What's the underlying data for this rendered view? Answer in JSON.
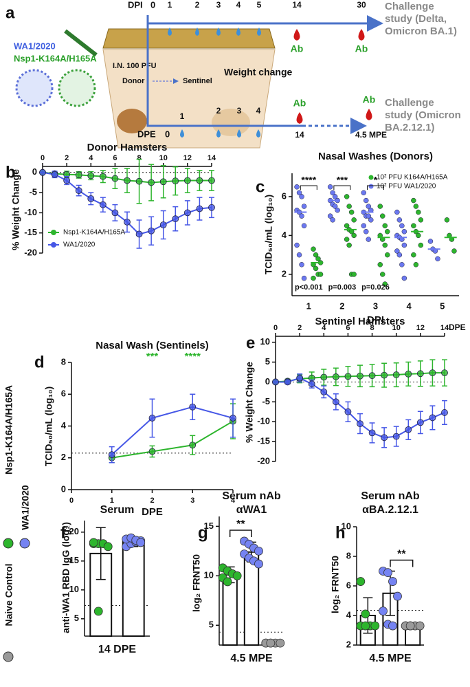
{
  "diagram": {
    "label": "a",
    "dpi_label": "DPI",
    "dpi_ticks": [
      "0",
      "1",
      "2",
      "3",
      "4",
      "5",
      "14",
      "30"
    ],
    "dpe_label": "DPE",
    "dpe_ticks": [
      "0",
      "1",
      "2",
      "3",
      "4",
      "14"
    ],
    "mpe_label": "4.5 MPE",
    "ab_label": "Ab",
    "challenge_top": [
      "Challenge",
      "study (Delta,",
      "Omicron BA.1)"
    ],
    "challenge_bottom": [
      "Challenge",
      "study (Omicron",
      "BA.2.12.1)"
    ],
    "strains": [
      "WA1/2020",
      "Nsp1-K164A/H165A"
    ],
    "dose": "I.N. 100 PFU",
    "donor": "Donor",
    "sentinel": "Sentinel",
    "weight_change": "Weight change"
  },
  "legend": [
    {
      "name": "Nsp1-K164A/H165A",
      "color": "#2db52d"
    },
    {
      "name": "WA1/2020",
      "color": "#7583f2"
    },
    {
      "name": "Naive Control",
      "color": "#9a9a9a"
    }
  ],
  "chart_data": [
    {
      "type": "line",
      "label": "b",
      "title": "Donor Hamsters",
      "y_label": "% Weight Change",
      "x": [
        0,
        1,
        2,
        3,
        4,
        5,
        6,
        7,
        8,
        9,
        10,
        11,
        12,
        13,
        14
      ],
      "xlim": [
        0,
        14
      ],
      "xticks": [
        0,
        2,
        4,
        6,
        8,
        10,
        12,
        14
      ],
      "ylim": [
        -20,
        1.5
      ],
      "yticks": [
        0,
        -5,
        -10,
        -15,
        -20
      ],
      "reference_line": 0,
      "legend": "bottom-left",
      "series": [
        {
          "name": "Nsp1-K164A/H165A",
          "color": "#2db52d",
          "values": [
            0,
            -0.3,
            -0.5,
            -0.6,
            -0.8,
            -1,
            -1.5,
            -2,
            -2.2,
            -2.5,
            -2.3,
            -2.1,
            -2,
            -2,
            -2
          ],
          "errors": [
            0,
            0.5,
            0.8,
            0.8,
            1,
            1.5,
            2.5,
            3,
            5.5,
            4.5,
            4,
            3.5,
            3,
            2.5,
            2.5
          ]
        },
        {
          "name": "WA1/2020",
          "color": "#4657e6",
          "values": [
            0,
            -0.5,
            -2,
            -4.5,
            -6.5,
            -8,
            -10,
            -12.3,
            -15.3,
            -14.5,
            -13,
            -11.5,
            -10,
            -9,
            -8.7
          ],
          "errors": [
            0,
            0.8,
            1,
            1.3,
            1.5,
            1.8,
            2,
            2.5,
            3.5,
            3.5,
            3.5,
            3,
            3,
            2.8,
            2.5
          ]
        }
      ]
    },
    {
      "type": "strip",
      "label": "c",
      "title": "Nasal  Washes (Donors)",
      "y_label": "TCID₅₀/mL (log₁₀)",
      "x_label": "DPI",
      "categories": [
        "1",
        "2",
        "3",
        "4",
        "5"
      ],
      "ylim": [
        0.9,
        7.2
      ],
      "yticks": [
        2,
        4,
        6
      ],
      "legend": "top-right",
      "annotations": [
        "****",
        "***",
        "*"
      ],
      "p_values": [
        "p<0.001",
        "p=0.003",
        "p=0.026"
      ],
      "series": [
        {
          "name": "10² PFU K164A/H165A",
          "color": "#2db52d",
          "points": [
            [
              3.3,
              3,
              2.8,
              2.6,
              2.5,
              2.3,
              2,
              2,
              1.8
            ],
            [
              6,
              5.5,
              5.2,
              4.8,
              4.5,
              4.3,
              4.2,
              4,
              3.8,
              3.5,
              2,
              2
            ],
            [
              5.5,
              5,
              4.5,
              4.2,
              4,
              3.8,
              3.5,
              3,
              2.5,
              2,
              1.5
            ],
            [
              5.8,
              5.5,
              5.2,
              4.8,
              4.5,
              4.2,
              4,
              3.5,
              3,
              2.5
            ],
            [
              4.8,
              4,
              3.8,
              3.2
            ]
          ],
          "means": [
            2.6,
            4.3,
            3.9,
            4.2,
            3.9
          ]
        },
        {
          "name": "10² PFU WA1/2020",
          "color": "#6b78f0",
          "points": [
            [
              6.5,
              6.2,
              6,
              5.5,
              5.3,
              5.2,
              5,
              4.5,
              3.5,
              3,
              2.5,
              1.8
            ],
            [
              6.5,
              6.2,
              6,
              5.8,
              5.8,
              5.6,
              5.5,
              5.3,
              5,
              4.8
            ],
            [
              6.2,
              5.8,
              5.5,
              5.3,
              5.2,
              5,
              5,
              4.8,
              4.5,
              4.2,
              3.8
            ],
            [
              5.2,
              4.8,
              4.5,
              4.2,
              4,
              3.9,
              3.8,
              3.5,
              3.2,
              3,
              2.5,
              1.8
            ],
            [
              3.7,
              3.3,
              3.2,
              2.8
            ]
          ],
          "means": [
            5.2,
            5.8,
            5.2,
            3.9,
            3.3
          ]
        }
      ]
    },
    {
      "type": "line",
      "label": "d",
      "title": "Nasal Wash (Sentinels)",
      "y_label": "TCID₅₀/mL (log₁₀)",
      "x_label": "DPE",
      "x": [
        1,
        2,
        3,
        4
      ],
      "xlim": [
        0,
        4
      ],
      "xticks": [
        0,
        1,
        2,
        3,
        4
      ],
      "ylim": [
        0,
        8
      ],
      "yticks": [
        0,
        2,
        4,
        6,
        8
      ],
      "reference_line": 2.3,
      "annotation_color": "#2db52d",
      "annotations": [
        {
          "x": 2,
          "text": "***"
        },
        {
          "x": 3,
          "text": "****"
        }
      ],
      "series": [
        {
          "color": "#2db52d",
          "values": [
            2.0,
            2.4,
            2.8,
            4.3
          ],
          "errors": [
            0.3,
            0.35,
            0.6,
            1.1
          ]
        },
        {
          "color": "#4657e6",
          "values": [
            2.2,
            4.5,
            5.2,
            4.5
          ],
          "errors": [
            0.5,
            1.2,
            0.8,
            1.2
          ]
        }
      ]
    },
    {
      "type": "line",
      "label": "e",
      "title": "Sentinel Hamsters",
      "y_label": "% Weight Change",
      "x_label": "DPE",
      "x": [
        0,
        1,
        2,
        3,
        4,
        5,
        6,
        7,
        8,
        9,
        10,
        11,
        12,
        13,
        14
      ],
      "xlim": [
        0,
        14
      ],
      "xticks": [
        0,
        2,
        4,
        6,
        8,
        10,
        12,
        14
      ],
      "ylim": [
        -20,
        11.5
      ],
      "yticks": [
        10,
        5,
        0,
        -5,
        -10,
        -15,
        -20
      ],
      "reference_line": 0,
      "series": [
        {
          "color": "#2db52d",
          "values": [
            0,
            0.2,
            0.8,
            1,
            1.2,
            1.3,
            1.4,
            1.5,
            1.6,
            1.7,
            1.8,
            2,
            2.1,
            2.3,
            2.3
          ],
          "errors": [
            0,
            0.5,
            1,
            1.5,
            2,
            2.2,
            2.5,
            2.7,
            2.8,
            3,
            3,
            3,
            3.2,
            3.3,
            3.3
          ]
        },
        {
          "color": "#4657e6",
          "values": [
            0,
            0,
            1,
            -0.5,
            -2.5,
            -5,
            -7.5,
            -10.5,
            -12.8,
            -14,
            -13.7,
            -12,
            -10.2,
            -9,
            -7.7
          ],
          "errors": [
            0,
            0.5,
            1,
            1,
            1.5,
            2,
            2.5,
            2.5,
            2.5,
            2.5,
            2.5,
            2.5,
            2.8,
            3,
            3
          ]
        }
      ]
    },
    {
      "type": "bar",
      "label": "f",
      "title": [
        "Serum"
      ],
      "y_label": "anti-WA1 RBD IgG (log₂)",
      "x_label": "14 DPE",
      "ylim": [
        2,
        22
      ],
      "yticks": [
        5,
        10,
        15,
        20
      ],
      "reference_line": 7.3,
      "series": [
        {
          "color": "#2db52d",
          "value": 16.3,
          "error": 4.5,
          "points": [
            18,
            18,
            18,
            17.5,
            18.2,
            6.3
          ]
        },
        {
          "color": "#7583f2",
          "value": 18.3,
          "error": 0.8,
          "points": [
            17.5,
            18,
            18.3,
            18.5,
            18.8,
            19,
            18.6,
            18.2
          ]
        }
      ]
    },
    {
      "type": "bar",
      "label": "g",
      "title": [
        "Serum nAb",
        "αWA1"
      ],
      "y_label": "log₂ FRNT50",
      "x_label": "4.5 MPE",
      "ylim": [
        3,
        16
      ],
      "yticks": [
        5,
        10,
        15
      ],
      "reference_line": 4.3,
      "series": [
        {
          "color": "#2db52d",
          "value": 10.1,
          "error": 0.8,
          "points": [
            10.8,
            10.5,
            10.2,
            10,
            9.8,
            9.4
          ]
        },
        {
          "color": "#7583f2",
          "value": 12.4,
          "error": 1.0,
          "points": [
            13.5,
            13.2,
            12.8,
            12.5,
            12.2,
            11.8,
            11.5,
            11.2
          ],
          "bracket_to_previous": "**"
        },
        {
          "color": "#9a9a9a",
          "value": 3.2,
          "error": 0,
          "points": [
            3.2,
            3.2,
            3.2,
            3.2,
            3.2,
            3.2
          ]
        }
      ]
    },
    {
      "type": "bar",
      "label": "h",
      "title": [
        "Serum nAb",
        "αBA.2.12.1"
      ],
      "y_label": "log₂ FRNT50",
      "x_label": "4.5 MPE",
      "ylim": [
        2,
        10
      ],
      "yticks": [
        2,
        4,
        6,
        8,
        10
      ],
      "reference_line": 4.35,
      "series": [
        {
          "color": "#2db52d",
          "value": 4.0,
          "error": 1.2,
          "points": [
            6.3,
            4.1,
            3.3,
            3.3,
            3.3,
            3.3
          ]
        },
        {
          "color": "#7583f2",
          "value": 5.5,
          "error": 1.5,
          "points": [
            7,
            6.9,
            6.3,
            5.3,
            4.3,
            3.4,
            3.3
          ]
        },
        {
          "color": "#9a9a9a",
          "value": 3.3,
          "error": 0,
          "points": [
            3.3,
            3.3,
            3.3,
            3.3,
            3.3,
            3.3
          ],
          "bracket_to_previous": "**"
        }
      ]
    }
  ]
}
